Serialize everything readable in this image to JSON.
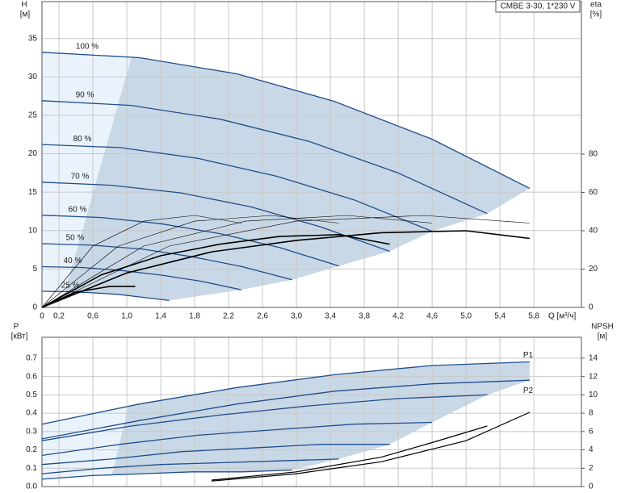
{
  "chart_data": [
    {
      "type": "line",
      "title": "CMBE 3-30, 1*230 V",
      "y_label": "H",
      "y_unit": "[м]",
      "y2_label": "eta",
      "y2_unit": "[%]",
      "x_label": "Q [м³/ч]",
      "xlim": [
        0,
        6.36
      ],
      "xticks": [
        0,
        {
          "value": 0.2,
          "label": "0,2"
        },
        {
          "value": 0.6,
          "label": "0,6"
        },
        {
          "value": 1.0,
          "label": "1,0"
        },
        {
          "value": 1.4,
          "label": "1,4"
        },
        {
          "value": 1.8,
          "label": "1,8"
        },
        {
          "value": 2.2,
          "label": "2,2"
        },
        {
          "value": 2.6,
          "label": "2,6"
        },
        {
          "value": 3.0,
          "label": "3,0"
        },
        {
          "value": 3.4,
          "label": "3,4"
        },
        {
          "value": 3.8,
          "label": "3,8"
        },
        {
          "value": 4.2,
          "label": "4,2"
        },
        {
          "value": 4.6,
          "label": "4,6"
        },
        {
          "value": 5.0,
          "label": "5,0"
        },
        {
          "value": 5.4,
          "label": "5,4"
        },
        {
          "value": 5.8,
          "label": "5,8"
        }
      ],
      "ylim": [
        0,
        39.8
      ],
      "yticks": [
        0,
        5,
        10,
        15,
        20,
        25,
        30,
        35
      ],
      "y2lim": [
        0,
        159.6
      ],
      "y2ticks": [
        0,
        20,
        40,
        60,
        80
      ],
      "grid": true,
      "fill": "#c9d8e6",
      "fill_light": "#eaf3fc",
      "label_position": "start",
      "series": [
        {
          "name": "100 %",
          "color": "#1f4e8c",
          "x": [
            0,
            1.15,
            2.3,
            3.45,
            4.6,
            5.75
          ],
          "values": [
            33.2,
            32.5,
            30.4,
            26.8,
            21.9,
            15.5
          ]
        },
        {
          "name": "90 %",
          "color": "#1f4e8c",
          "x": [
            0,
            1.05,
            2.1,
            3.15,
            4.2,
            5.25
          ],
          "values": [
            26.9,
            26.3,
            24.5,
            21.6,
            17.5,
            12.2
          ]
        },
        {
          "name": "80 %",
          "color": "#1f4e8c",
          "x": [
            0,
            0.92,
            1.84,
            2.76,
            3.68,
            4.6
          ],
          "values": [
            21.2,
            20.8,
            19.4,
            17.1,
            14.0,
            9.9
          ]
        },
        {
          "name": "70 %",
          "color": "#1f4e8c",
          "x": [
            0,
            0.82,
            1.64,
            2.46,
            3.28,
            4.1
          ],
          "values": [
            16.3,
            15.9,
            14.9,
            13.1,
            10.5,
            7.3
          ]
        },
        {
          "name": "60 %",
          "color": "#1f4e8c",
          "x": [
            0,
            0.7,
            1.4,
            2.1,
            2.8,
            3.5
          ],
          "values": [
            12.0,
            11.7,
            10.9,
            9.6,
            7.8,
            5.4
          ]
        },
        {
          "name": "50 %",
          "color": "#1f4e8c",
          "x": [
            0,
            0.59,
            1.18,
            1.77,
            2.36,
            2.95
          ],
          "values": [
            8.3,
            8.1,
            7.6,
            6.6,
            5.3,
            3.6
          ]
        },
        {
          "name": "40 %",
          "color": "#1f4e8c",
          "x": [
            0,
            0.47,
            0.94,
            1.41,
            1.88,
            2.35
          ],
          "values": [
            5.3,
            5.2,
            4.8,
            4.2,
            3.4,
            2.3
          ]
        },
        {
          "name": "25 %",
          "color": "#1f4e8c",
          "x": [
            0,
            0.3,
            0.6,
            0.9,
            1.2,
            1.5
          ],
          "values": [
            2.1,
            2.05,
            1.9,
            1.7,
            1.3,
            0.9
          ]
        },
        {
          "axis": "y2",
          "color": "#000000",
          "line_width": 0.6,
          "x": [
            0,
            1.5,
            3,
            4.5,
            5.75
          ],
          "values": [
            0,
            32,
            45,
            48,
            44
          ]
        },
        {
          "axis": "y2",
          "color": "#000000",
          "line_width": 0.6,
          "x": [
            0,
            1.2,
            2.4,
            3.6,
            4.6
          ],
          "values": [
            0,
            32,
            45,
            48,
            44
          ]
        },
        {
          "axis": "y2",
          "color": "#000000",
          "line_width": 0.6,
          "x": [
            0,
            0.9,
            1.8,
            2.7,
            3.5
          ],
          "values": [
            0,
            32,
            45,
            48,
            44
          ]
        },
        {
          "axis": "y2",
          "color": "#000000",
          "line_width": 0.6,
          "x": [
            0,
            0.6,
            1.2,
            1.8,
            2.35
          ],
          "values": [
            0,
            32,
            45,
            48,
            44
          ]
        },
        {
          "axis": "y2",
          "color": "#000000",
          "line_width": 1.6,
          "x": [
            0,
            1,
            2,
            3,
            4,
            5,
            5.75
          ],
          "values": [
            0,
            18,
            29,
            35,
            39,
            40,
            36
          ]
        },
        {
          "axis": "y2",
          "color": "#000000",
          "line_width": 1.6,
          "x": [
            0,
            0.7,
            1.4,
            2.1,
            2.8,
            3.5,
            4.1
          ],
          "values": [
            0,
            17,
            27,
            33,
            37,
            38,
            33
          ]
        },
        {
          "axis": "y2",
          "color": "#000000",
          "line_width": 1.6,
          "x": [
            0,
            0.4,
            0.8,
            1.1
          ],
          "values": [
            0,
            8,
            11,
            11
          ]
        }
      ]
    },
    {
      "type": "line",
      "y_label": "P",
      "y_unit": "[кВт]",
      "y2_label": "NPSH",
      "y2_unit": "[м]",
      "xlim": [
        0,
        6.36
      ],
      "xticks": [
        0,
        0.2,
        0.6,
        1.0,
        1.4,
        1.8,
        2.2,
        2.6,
        3.0,
        3.4,
        3.8,
        4.2,
        4.6,
        5.0,
        5.4,
        5.8
      ],
      "ylim": [
        0,
        0.814
      ],
      "yticks": [
        {
          "value": 0,
          "label": "0.0"
        },
        0.1,
        0.2,
        0.3,
        0.4,
        0.5,
        0.6,
        0.7
      ],
      "y2lim": [
        0,
        16.28
      ],
      "y2ticks": [
        0,
        2,
        4,
        6,
        8,
        10,
        12,
        14
      ],
      "grid": true,
      "fill": "#c9d8e6",
      "fill_light": "#eaf3fc",
      "label_position": "end",
      "series": [
        {
          "name": "P1",
          "color": "#1f4e8c",
          "x": [
            0,
            1.15,
            2.3,
            3.45,
            4.6,
            5.75
          ],
          "values": [
            0.34,
            0.45,
            0.54,
            0.61,
            0.66,
            0.68
          ]
        },
        {
          "name": "P2",
          "color": "#1f4e8c",
          "x": [
            0,
            1.15,
            2.3,
            3.45,
            4.6,
            5.75
          ],
          "values": [
            0.26,
            0.36,
            0.45,
            0.52,
            0.56,
            0.58
          ]
        },
        {
          "color": "#1f4e8c",
          "x": [
            0,
            1.05,
            2.1,
            3.15,
            4.2,
            5.25
          ],
          "values": [
            0.25,
            0.33,
            0.39,
            0.44,
            0.48,
            0.5
          ]
        },
        {
          "color": "#1f4e8c",
          "x": [
            0,
            0.92,
            1.84,
            2.76,
            3.68,
            4.6
          ],
          "values": [
            0.17,
            0.23,
            0.28,
            0.31,
            0.34,
            0.35
          ]
        },
        {
          "color": "#1f4e8c",
          "x": [
            0,
            0.82,
            1.64,
            2.46,
            3.28,
            4.1
          ],
          "values": [
            0.12,
            0.15,
            0.19,
            0.21,
            0.23,
            0.23
          ]
        },
        {
          "color": "#1f4e8c",
          "x": [
            0,
            0.7,
            1.4,
            2.1,
            2.8,
            3.5
          ],
          "values": [
            0.07,
            0.1,
            0.12,
            0.13,
            0.14,
            0.15
          ]
        },
        {
          "color": "#1f4e8c",
          "x": [
            0,
            0.59,
            1.18,
            1.77,
            2.36,
            2.95
          ],
          "values": [
            0.04,
            0.06,
            0.07,
            0.08,
            0.08,
            0.09
          ]
        },
        {
          "axis": "y2",
          "color": "#000000",
          "line_width": 1.2,
          "x": [
            2,
            3,
            4,
            5,
            5.75
          ],
          "values": [
            0.6,
            1.4,
            2.7,
            5.0,
            8.1
          ]
        },
        {
          "axis": "y2",
          "color": "#000000",
          "line_width": 1.2,
          "x": [
            2,
            3,
            4,
            4.6,
            5.25
          ],
          "values": [
            0.7,
            1.6,
            3.2,
            4.8,
            6.6
          ]
        }
      ]
    }
  ]
}
